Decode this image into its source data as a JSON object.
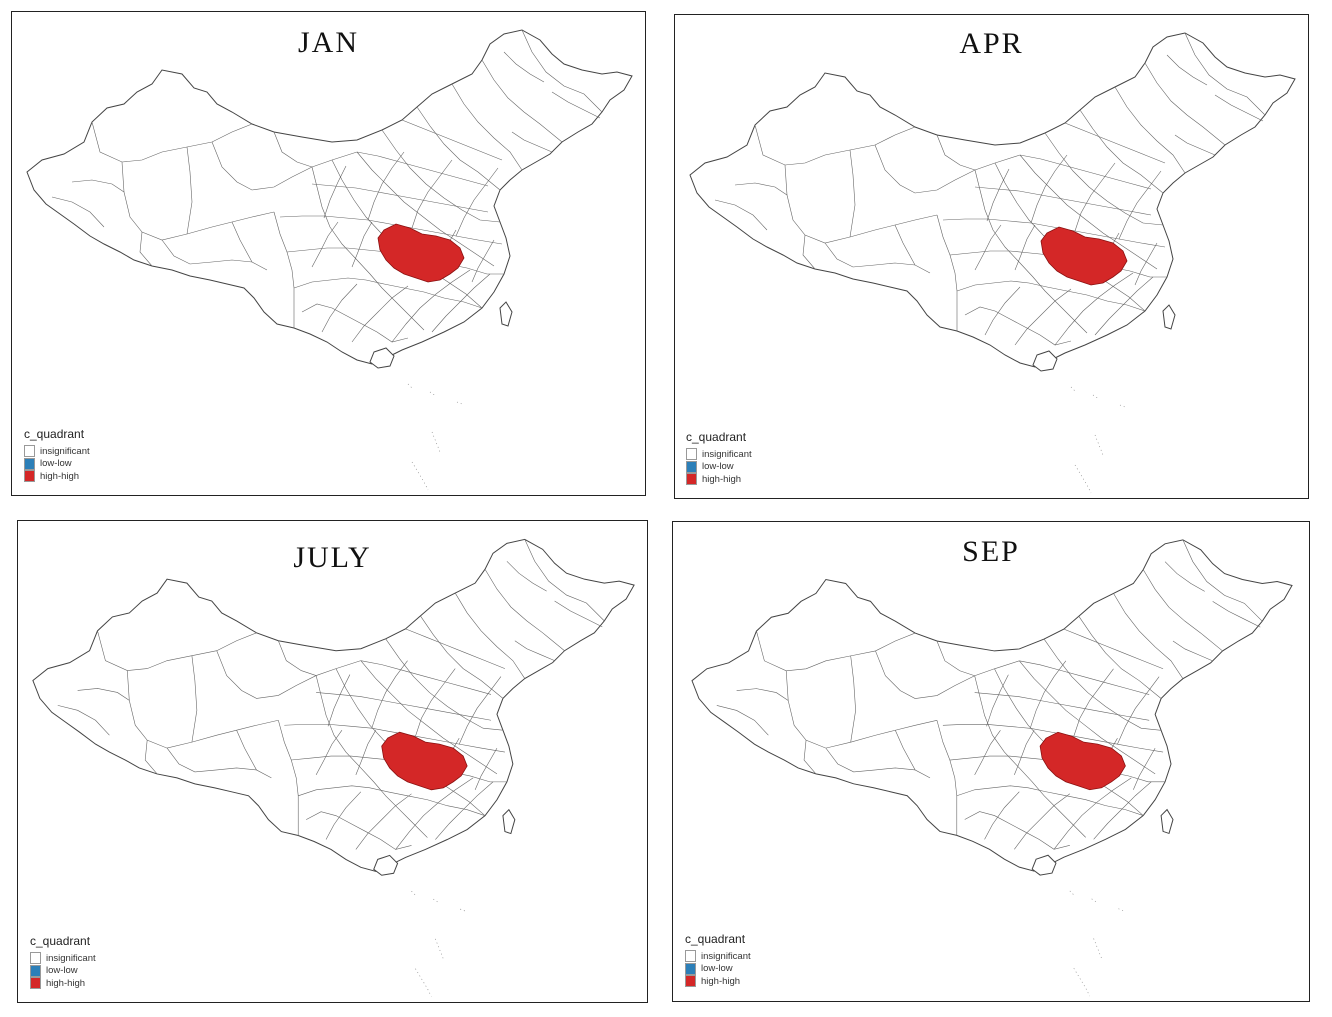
{
  "legend": {
    "title": "c_quadrant",
    "items": [
      {
        "label": "insignificant",
        "color": "#ffffff"
      },
      {
        "label": "low-low",
        "color": "#2c7fb8"
      },
      {
        "label": "high-high",
        "color": "#d42727"
      }
    ]
  },
  "panels": [
    {
      "title": "JAN"
    },
    {
      "title": "APR"
    },
    {
      "title": "JULY"
    },
    {
      "title": "SEP"
    }
  ]
}
